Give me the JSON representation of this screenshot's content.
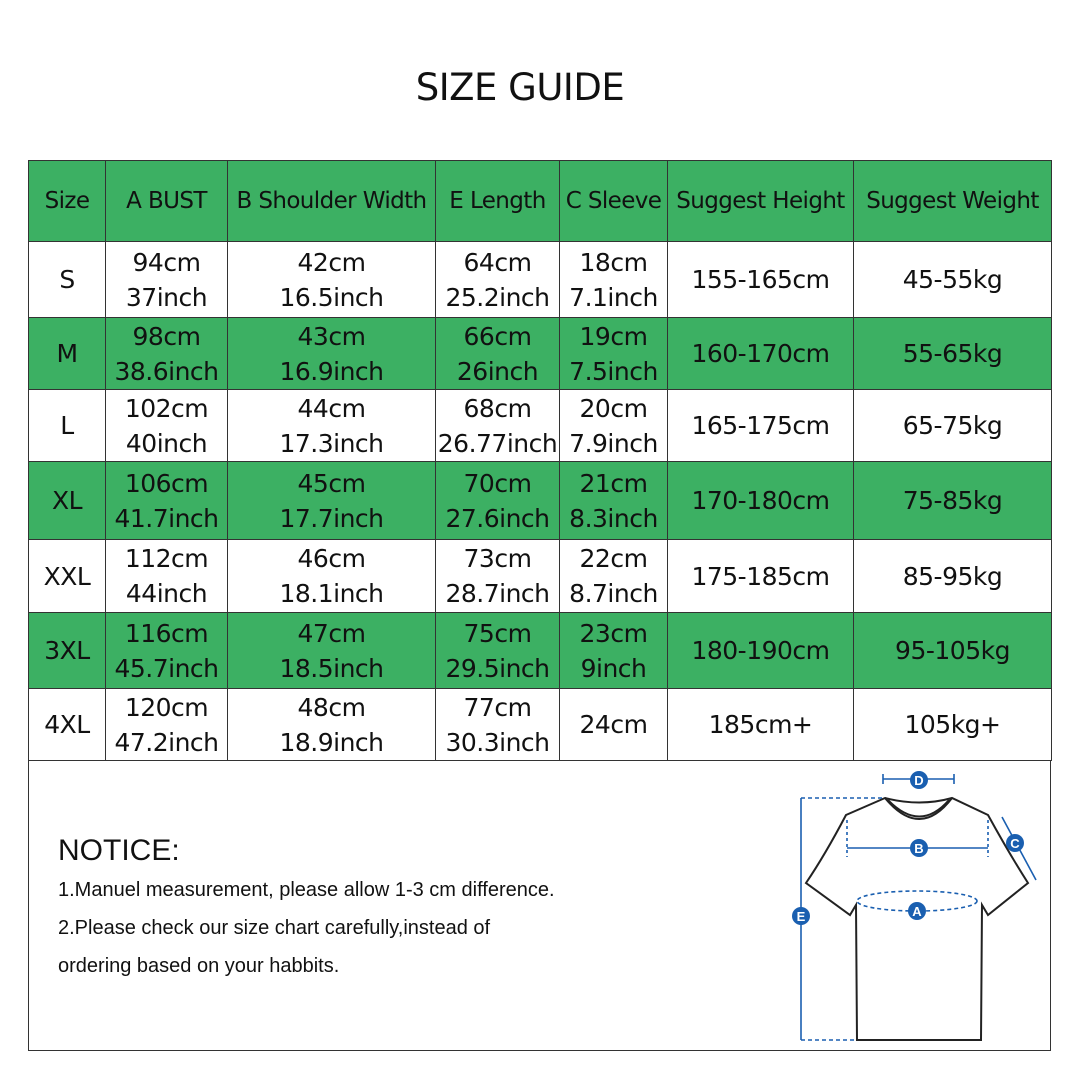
{
  "title": "SIZE GUIDE",
  "colors": {
    "green": "#3cb063",
    "diagram_blue": "#1a5fb0"
  },
  "table": {
    "headers": [
      "Size",
      "A BUST",
      "B Shoulder Width",
      "E Length",
      "C Sleeve",
      "Suggest Height",
      "Suggest Weight"
    ],
    "rows": [
      {
        "size": "S",
        "bust": [
          "94cm",
          "37inch"
        ],
        "shoulder": [
          "42cm",
          "16.5inch"
        ],
        "length": [
          "64cm",
          "25.2inch"
        ],
        "sleeve": [
          "18cm",
          "7.1inch"
        ],
        "height": "155-165cm",
        "weight": "45-55kg"
      },
      {
        "size": "M",
        "bust": [
          "98cm",
          "38.6inch"
        ],
        "shoulder": [
          "43cm",
          "16.9inch"
        ],
        "length": [
          "66cm",
          "26inch"
        ],
        "sleeve": [
          "19cm",
          "7.5inch"
        ],
        "height": "160-170cm",
        "weight": "55-65kg"
      },
      {
        "size": "L",
        "bust": [
          "102cm",
          "40inch"
        ],
        "shoulder": [
          "44cm",
          "17.3inch"
        ],
        "length": [
          "68cm",
          "26.77inch"
        ],
        "sleeve": [
          "20cm",
          "7.9inch"
        ],
        "height": "165-175cm",
        "weight": "65-75kg"
      },
      {
        "size": "XL",
        "bust": [
          "106cm",
          "41.7inch"
        ],
        "shoulder": [
          "45cm",
          "17.7inch"
        ],
        "length": [
          "70cm",
          "27.6inch"
        ],
        "sleeve": [
          "21cm",
          "8.3inch"
        ],
        "height": "170-180cm",
        "weight": "75-85kg"
      },
      {
        "size": "XXL",
        "bust": [
          "112cm",
          "44inch"
        ],
        "shoulder": [
          "46cm",
          "18.1inch"
        ],
        "length": [
          "73cm",
          "28.7inch"
        ],
        "sleeve": [
          "22cm",
          "8.7inch"
        ],
        "height": "175-185cm",
        "weight": "85-95kg"
      },
      {
        "size": "3XL",
        "bust": [
          "116cm",
          "45.7inch"
        ],
        "shoulder": [
          "47cm",
          "18.5inch"
        ],
        "length": [
          "75cm",
          "29.5inch"
        ],
        "sleeve": [
          "23cm",
          "9inch"
        ],
        "height": "180-190cm",
        "weight": "95-105kg"
      },
      {
        "size": "4XL",
        "bust": [
          "120cm",
          "47.2inch"
        ],
        "shoulder": [
          "48cm",
          "18.9inch"
        ],
        "length": [
          "77cm",
          "30.3inch"
        ],
        "sleeve": [
          "24cm"
        ],
        "height": "185cm+",
        "weight": "105kg+"
      }
    ]
  },
  "notice": {
    "heading": "NOTICE:",
    "lines": [
      "1.Manuel measurement, please allow 1-3 cm difference.",
      "2.Please check our size chart carefully,instead of",
      "ordering based on your habbits."
    ]
  },
  "diagram": {
    "labels": {
      "a": "A",
      "b": "B",
      "c": "C",
      "d": "D",
      "e": "E"
    }
  }
}
